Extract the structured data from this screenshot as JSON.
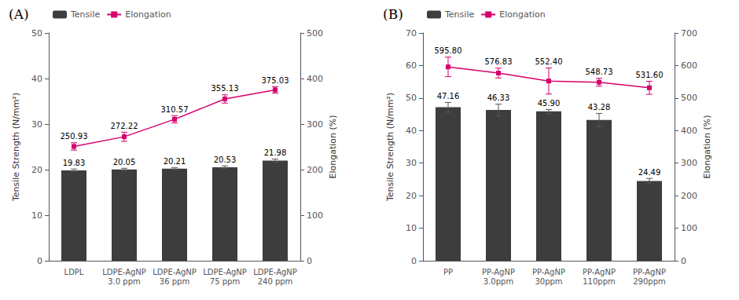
{
  "chart_data": [
    {
      "type": "bar",
      "title": "(A)",
      "categories": [
        "LDPL",
        "LDPE-AgNP\n3.0 ppm",
        "LDPE-AgNP\n36 ppm",
        "LDPE-AgNP\n75 ppm",
        "LDPE-AgNP\n240 ppm"
      ],
      "ylabel": "Tensile Strength (N/mm²)",
      "y2label": "Elongation (%)",
      "ylim": [
        0,
        50
      ],
      "yticks": [
        0,
        10,
        20,
        30,
        40,
        50
      ],
      "y2lim": [
        0,
        500
      ],
      "y2ticks": [
        0,
        100,
        200,
        300,
        400,
        500
      ],
      "grid": false,
      "legend": "upper left",
      "data_labels": true,
      "series": [
        {
          "name": "Tensile",
          "type": "bar",
          "color": "#3d3d3d",
          "values": [
            19.83,
            20.05,
            20.21,
            20.53,
            21.98
          ],
          "errors": [
            0.3,
            0.25,
            0.2,
            0.3,
            0.35
          ],
          "value_labels": [
            "19.83",
            "20.05",
            "20.21",
            "20.53",
            "21.98"
          ]
        },
        {
          "name": "Elongation",
          "type": "line",
          "axis": "y2",
          "color": "#d5006d",
          "marker": "square",
          "values": [
            250.93,
            272.22,
            310.57,
            355.13,
            375.03
          ],
          "errors": [
            8,
            10,
            8,
            9,
            7
          ],
          "value_labels": [
            "250.93",
            "272.22",
            "310.57",
            "355.13",
            "375.03"
          ]
        }
      ]
    },
    {
      "type": "bar",
      "title": "(B)",
      "categories": [
        "PP",
        "PP-AgNP\n3.0ppm",
        "PP-AgNP\n30ppm",
        "PP-AgNP\n110ppm",
        "PP-AgNP\n290ppm"
      ],
      "ylabel": "Tensile Strength (N/mm²)",
      "y2label": "Elongation (%)",
      "ylim": [
        0,
        70
      ],
      "yticks": [
        0,
        10,
        20,
        30,
        40,
        50,
        60,
        70
      ],
      "y2lim": [
        0,
        700
      ],
      "y2ticks": [
        0,
        100,
        200,
        300,
        400,
        500,
        600,
        700
      ],
      "grid": false,
      "legend": "upper left",
      "data_labels": true,
      "series": [
        {
          "name": "Tensile",
          "type": "bar",
          "color": "#3d3d3d",
          "values": [
            47.16,
            46.33,
            45.9,
            43.28,
            24.49
          ],
          "errors": [
            1.5,
            1.8,
            0.6,
            2.0,
            0.8
          ],
          "value_labels": [
            "47.16",
            "46.33",
            "45.90",
            "43.28",
            "24.49"
          ]
        },
        {
          "name": "Elongation",
          "type": "line",
          "axis": "y2",
          "color": "#d5006d",
          "marker": "square",
          "values": [
            595.8,
            576.83,
            552.4,
            548.73,
            531.6
          ],
          "errors": [
            30,
            15,
            40,
            12,
            20
          ],
          "value_labels": [
            "595.80",
            "576.83",
            "552.40",
            "548.73",
            "531.60"
          ]
        }
      ]
    }
  ]
}
